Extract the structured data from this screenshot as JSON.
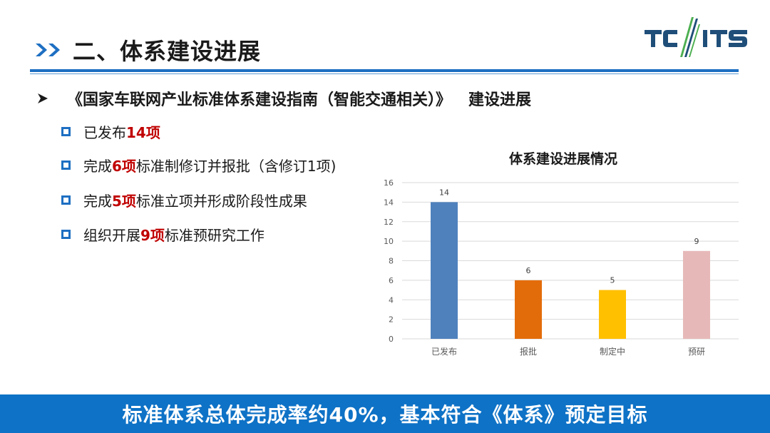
{
  "header": {
    "title": "二、体系建设进展",
    "logo_text": "TC//ITS"
  },
  "main_bullet": {
    "title": "《国家车联网产业标准体系建设指南（智能交通相关）》",
    "suffix": "建设进展"
  },
  "items": [
    {
      "pre": "已发布",
      "hl": "14项",
      "post": ""
    },
    {
      "pre": "完成",
      "hl": "6项",
      "post": "标准制修订并报批（含修订1项)"
    },
    {
      "pre": "完成",
      "hl": "5项",
      "post": "标准立项并形成阶段性成果"
    },
    {
      "pre": "组织开展",
      "hl": "9项",
      "post": "标准预研究工作"
    }
  ],
  "chart_data": {
    "type": "bar",
    "title": "体系建设进展情况",
    "categories": [
      "已发布",
      "报批",
      "制定中",
      "预研"
    ],
    "values": [
      14,
      6,
      5,
      9
    ],
    "bar_colors": [
      "#4f81bd",
      "#e36c0a",
      "#ffc000",
      "#e6b9b8"
    ],
    "ylim": [
      0,
      16
    ],
    "yticks": [
      0,
      2,
      4,
      6,
      8,
      10,
      12,
      14,
      16
    ],
    "grid": true,
    "xlabel": "",
    "ylabel": ""
  },
  "banner": {
    "text": "标准体系总体完成率约40%，基本符合《体系》预定目标"
  },
  "colors": {
    "accent": "#1e6fc2",
    "highlight": "#c00000",
    "banner_bg": "#0e72c6"
  }
}
